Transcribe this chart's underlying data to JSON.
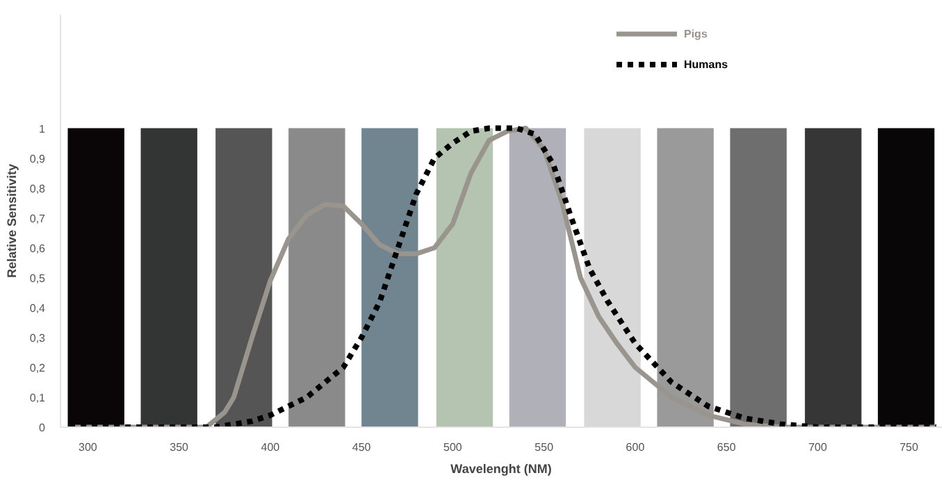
{
  "chart_data": {
    "type": "line",
    "xlabel": "Wavelenght (NM)",
    "ylabel": "Relative Sensitivity",
    "xlim": [
      285,
      768
    ],
    "ylim": [
      0,
      1.38
    ],
    "xticks": [
      300,
      350,
      400,
      450,
      500,
      550,
      600,
      650,
      700,
      750
    ],
    "yticks": [
      0,
      {
        "value": 0.1,
        "label": "0,1"
      },
      {
        "value": 0.2,
        "label": "0,2"
      },
      {
        "value": 0.3,
        "label": "0,3"
      },
      {
        "value": 0.4,
        "label": "0,4"
      },
      {
        "value": 0.5,
        "label": "0,5"
      },
      {
        "value": 0.6,
        "label": "0,6"
      },
      {
        "value": 0.7,
        "label": "0,7"
      },
      {
        "value": 0.8,
        "label": "0,8"
      },
      {
        "value": 0.9,
        "label": "0,9"
      },
      1
    ],
    "grid": false,
    "legend": "top right",
    "bands": [
      {
        "axis": "x",
        "from": 289,
        "to": 320,
        "color": "#0a0506"
      },
      {
        "axis": "x",
        "from": 329,
        "to": 360,
        "color": "#333535"
      },
      {
        "axis": "x",
        "from": 370,
        "to": 401,
        "color": "#555555"
      },
      {
        "axis": "x",
        "from": 410,
        "to": 441,
        "color": "#8a8a8a"
      },
      {
        "axis": "x",
        "from": 450,
        "to": 481,
        "color": "#708590"
      },
      {
        "axis": "x",
        "from": 491,
        "to": 522,
        "color": "#b5c4b0"
      },
      {
        "axis": "x",
        "from": 531,
        "to": 562,
        "color": "#b0b0b8"
      },
      {
        "axis": "x",
        "from": 572,
        "to": 603,
        "color": "#d8d8d8"
      },
      {
        "axis": "x",
        "from": 612,
        "to": 643,
        "color": "#9a9a9a"
      },
      {
        "axis": "x",
        "from": 652,
        "to": 683,
        "color": "#6e6e6e"
      },
      {
        "axis": "x",
        "from": 693,
        "to": 724,
        "color": "#363636"
      },
      {
        "axis": "x",
        "from": 733,
        "to": 764,
        "color": "#080606"
      }
    ],
    "series": [
      {
        "name": "Pigs",
        "color": "#9a948e",
        "line_style": "solid",
        "x": [
          290,
          340,
          365,
          375,
          380,
          390,
          400,
          410,
          420,
          430,
          440,
          450,
          460,
          470,
          480,
          490,
          500,
          510,
          520,
          530,
          540,
          550,
          560,
          570,
          580,
          590,
          600,
          620,
          640,
          660,
          680,
          720,
          765
        ],
        "values": [
          0,
          0,
          0,
          0.05,
          0.1,
          0.3,
          0.49,
          0.63,
          0.71,
          0.745,
          0.74,
          0.68,
          0.61,
          0.58,
          0.58,
          0.6,
          0.68,
          0.85,
          0.96,
          0.99,
          1.0,
          0.93,
          0.75,
          0.5,
          0.37,
          0.28,
          0.2,
          0.1,
          0.04,
          0.01,
          0,
          0,
          0
        ]
      },
      {
        "name": "Humans",
        "color": "#000000",
        "line_style": "dashed",
        "x": [
          290,
          340,
          370,
          390,
          400,
          420,
          440,
          450,
          460,
          470,
          480,
          490,
          500,
          510,
          520,
          535,
          545,
          555,
          565,
          575,
          585,
          600,
          620,
          640,
          660,
          680,
          700,
          765
        ],
        "values": [
          0,
          0,
          0,
          0.02,
          0.04,
          0.1,
          0.2,
          0.3,
          0.42,
          0.6,
          0.78,
          0.9,
          0.95,
          0.99,
          1.0,
          1.0,
          0.98,
          0.88,
          0.7,
          0.53,
          0.42,
          0.28,
          0.15,
          0.07,
          0.03,
          0.01,
          0,
          0
        ]
      }
    ]
  }
}
